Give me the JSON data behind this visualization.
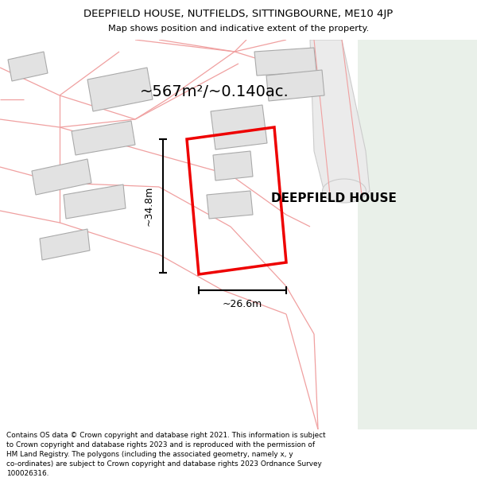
{
  "title": "DEEPFIELD HOUSE, NUTFIELDS, SITTINGBOURNE, ME10 4JP",
  "subtitle": "Map shows position and indicative extent of the property.",
  "footer": "Contains OS data © Crown copyright and database right 2021. This information is subject\nto Crown copyright and database rights 2023 and is reproduced with the permission of\nHM Land Registry. The polygons (including the associated geometry, namely x, y\nco-ordinates) are subject to Crown copyright and database rights 2023 Ordnance Survey\n100026316.",
  "area_label": "~567m²/~0.140ac.",
  "property_label": "DEEPFIELD HOUSE",
  "dim_height": "~34.8m",
  "dim_width": "~26.6m",
  "bg_map_color": "#faf5f5",
  "bg_right_color": "#e9f0e9",
  "building_fill": "#e2e2e2",
  "building_edge": "#aaaaaa",
  "property_boundary_color": "#ee0000",
  "pink_line_color": "#f0a0a0",
  "road_fill": "#f0f0f0",
  "road_edge": "#cccccc",
  "figsize": [
    6.0,
    6.25
  ],
  "dpi": 100,
  "title_fontsize": 9.5,
  "subtitle_fontsize": 8.2,
  "footer_fontsize": 6.4,
  "area_fontsize": 14,
  "label_fontsize": 11,
  "dim_fontsize": 9
}
